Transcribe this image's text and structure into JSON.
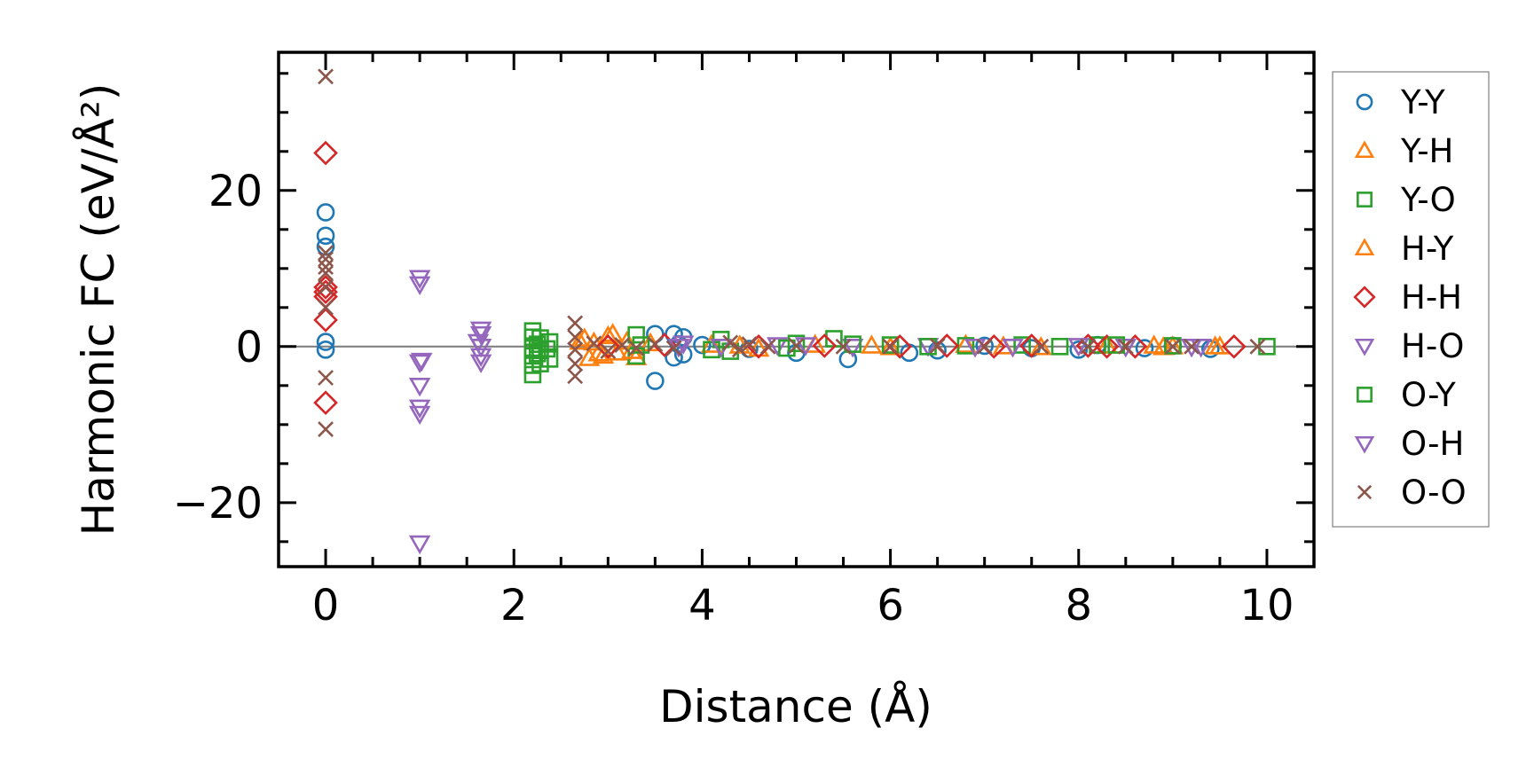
{
  "chart_data": {
    "type": "scatter",
    "title": "",
    "xlabel": "Distance (Å)",
    "ylabel": "Harmonic FC (eV/Å²)",
    "xlim": [
      -0.5,
      10.5
    ],
    "ylim": [
      -28.2,
      37.7
    ],
    "xticks": [
      0,
      2,
      4,
      6,
      8,
      10
    ],
    "xtick_labels": [
      "0",
      "2",
      "4",
      "6",
      "8",
      "10"
    ],
    "yticks": [
      -20,
      0,
      20
    ],
    "ytick_labels": [
      "−20",
      "0",
      "20"
    ],
    "x_minor_step": 0.5,
    "y_minor_step": 5,
    "grid": false,
    "zero_line": {
      "y": 0,
      "color": "#808080"
    },
    "legend_position": "outside-right",
    "series": [
      {
        "name": "Y-Y",
        "marker": "circle",
        "color": "#1f77b4",
        "points": [
          [
            0,
            17.2
          ],
          [
            0,
            14.2
          ],
          [
            0,
            12.8
          ],
          [
            0,
            0.6
          ],
          [
            0,
            -0.4
          ],
          [
            3.5,
            -4.4
          ],
          [
            3.5,
            1.6
          ],
          [
            3.7,
            1.6
          ],
          [
            3.7,
            -1.4
          ],
          [
            3.8,
            1.2
          ],
          [
            3.8,
            -1.0
          ],
          [
            3.75,
            0.3
          ],
          [
            4.0,
            0.2
          ],
          [
            4.5,
            -0.3
          ],
          [
            5.0,
            -0.8
          ],
          [
            5.55,
            -1.6
          ],
          [
            6.2,
            -0.8
          ],
          [
            6.5,
            -0.5
          ],
          [
            7.0,
            0.1
          ],
          [
            7.5,
            -0.2
          ],
          [
            8.0,
            -0.4
          ],
          [
            8.2,
            0.2
          ],
          [
            8.7,
            -0.2
          ],
          [
            9.0,
            0.1
          ],
          [
            9.4,
            -0.3
          ]
        ]
      },
      {
        "name": "Y-H",
        "marker": "triangle-up",
        "color": "#ff7f0e",
        "points": [
          [
            2.75,
            1.0
          ],
          [
            2.8,
            -1.5
          ],
          [
            2.85,
            0.5
          ],
          [
            2.95,
            -1.2
          ],
          [
            3.0,
            1.3
          ],
          [
            3.1,
            -0.8
          ],
          [
            3.2,
            0.6
          ],
          [
            3.3,
            -1.4
          ],
          [
            3.45,
            0.4
          ],
          [
            4.1,
            0.2
          ],
          [
            4.6,
            -0.3
          ],
          [
            5.2,
            0.2
          ],
          [
            6.0,
            -0.1
          ],
          [
            6.8,
            0.2
          ],
          [
            7.6,
            -0.1
          ],
          [
            8.3,
            0.1
          ],
          [
            8.9,
            -0.1
          ],
          [
            9.0,
            0.0
          ],
          [
            9.45,
            0.0
          ]
        ]
      },
      {
        "name": "Y-O",
        "marker": "square",
        "color": "#2ca02c",
        "points": [
          [
            2.2,
            2.0
          ],
          [
            2.2,
            1.2
          ],
          [
            2.2,
            -0.2
          ],
          [
            2.2,
            -1.2
          ],
          [
            2.2,
            -2.4
          ],
          [
            2.2,
            -3.6
          ],
          [
            2.28,
            1.1
          ],
          [
            2.28,
            -0.5
          ],
          [
            2.28,
            -2.2
          ],
          [
            2.38,
            0.6
          ],
          [
            2.38,
            -1.6
          ],
          [
            3.3,
            1.5
          ],
          [
            3.3,
            -1.2
          ],
          [
            4.2,
            0.9
          ],
          [
            4.3,
            -0.6
          ],
          [
            5.0,
            0.4
          ],
          [
            5.4,
            1.0
          ],
          [
            6.0,
            0.2
          ],
          [
            6.8,
            0.1
          ],
          [
            7.4,
            0.2
          ],
          [
            8.2,
            0.2
          ],
          [
            9.0,
            0.1
          ],
          [
            10.0,
            0.0
          ]
        ]
      },
      {
        "name": "H-Y",
        "marker": "triangle-up",
        "color": "#ff7f0e",
        "points": [
          [
            2.7,
            0.6
          ],
          [
            2.9,
            -0.9
          ],
          [
            3.05,
            1.6
          ],
          [
            3.25,
            -0.6
          ],
          [
            4.4,
            0.1
          ],
          [
            5.8,
            0.1
          ],
          [
            7.2,
            0.0
          ],
          [
            8.8,
            0.1
          ],
          [
            9.5,
            0.0
          ]
        ]
      },
      {
        "name": "H-H",
        "marker": "diamond",
        "color": "#d62728",
        "points": [
          [
            0,
            24.8
          ],
          [
            0,
            7.6
          ],
          [
            0,
            7.0
          ],
          [
            0,
            6.4
          ],
          [
            0,
            3.4
          ],
          [
            0,
            -7.2
          ],
          [
            3.0,
            0.0
          ],
          [
            3.6,
            0.2
          ],
          [
            4.6,
            0.0
          ],
          [
            5.3,
            0.1
          ],
          [
            6.1,
            0.0
          ],
          [
            6.6,
            0.1
          ],
          [
            7.1,
            0.0
          ],
          [
            7.5,
            0.1
          ],
          [
            8.1,
            0.1
          ],
          [
            8.3,
            0.0
          ],
          [
            8.6,
            0.0
          ],
          [
            9.65,
            0.0
          ]
        ]
      },
      {
        "name": "H-O",
        "marker": "triangle-down",
        "color": "#9467bd",
        "points": [
          [
            1.0,
            8.8
          ],
          [
            1.0,
            8.0
          ],
          [
            1.0,
            -2.0
          ],
          [
            1.0,
            -5.0
          ],
          [
            1.0,
            -7.8
          ],
          [
            1.0,
            -8.6
          ],
          [
            1.0,
            -25.2
          ],
          [
            1.65,
            2.2
          ],
          [
            1.65,
            1.6
          ],
          [
            1.65,
            0.0
          ],
          [
            1.65,
            -1.2
          ],
          [
            1.65,
            -2.0
          ],
          [
            3.75,
            0.0
          ],
          [
            4.8,
            0.2
          ],
          [
            5.6,
            0.0
          ],
          [
            6.4,
            0.1
          ],
          [
            7.3,
            0.0
          ],
          [
            8.5,
            0.0
          ],
          [
            9.2,
            0.0
          ]
        ]
      },
      {
        "name": "O-Y",
        "marker": "square",
        "color": "#2ca02c",
        "points": [
          [
            2.25,
            0.3
          ],
          [
            2.25,
            -0.9
          ],
          [
            2.35,
            -0.3
          ],
          [
            3.35,
            0.2
          ],
          [
            4.1,
            -0.4
          ],
          [
            4.9,
            -0.2
          ],
          [
            5.6,
            0.3
          ],
          [
            6.4,
            0.0
          ],
          [
            7.8,
            0.0
          ],
          [
            8.4,
            0.2
          ]
        ]
      },
      {
        "name": "O-H",
        "marker": "triangle-down",
        "color": "#9467bd",
        "points": [
          [
            1.02,
            -1.8
          ],
          [
            1.62,
            0.6
          ],
          [
            3.8,
            0.4
          ],
          [
            4.2,
            0.0
          ],
          [
            5.1,
            0.2
          ],
          [
            6.9,
            0.0
          ],
          [
            8.0,
            0.1
          ],
          [
            9.3,
            0.0
          ]
        ]
      },
      {
        "name": "O-O",
        "marker": "x",
        "color": "#8c564b",
        "points": [
          [
            0,
            34.6
          ],
          [
            0,
            12.0
          ],
          [
            0,
            11.2
          ],
          [
            0,
            10.2
          ],
          [
            0,
            9.4
          ],
          [
            0,
            7.6
          ],
          [
            0,
            5.0
          ],
          [
            0,
            -4.0
          ],
          [
            0,
            -10.6
          ],
          [
            2.65,
            3.0
          ],
          [
            2.65,
            1.2
          ],
          [
            2.65,
            -0.4
          ],
          [
            2.65,
            -2.2
          ],
          [
            2.65,
            -3.8
          ],
          [
            2.85,
            0.4
          ],
          [
            3.0,
            -0.6
          ],
          [
            3.15,
            0.2
          ],
          [
            3.3,
            -0.2
          ],
          [
            3.5,
            0.3
          ],
          [
            3.7,
            -0.2
          ],
          [
            4.3,
            0.5
          ],
          [
            4.4,
            -0.4
          ],
          [
            4.5,
            0.3
          ],
          [
            4.7,
            0.0
          ],
          [
            5.0,
            0.1
          ],
          [
            5.5,
            0.0
          ],
          [
            6.0,
            0.0
          ],
          [
            6.5,
            0.1
          ],
          [
            7.0,
            0.0
          ],
          [
            7.6,
            0.0
          ],
          [
            8.1,
            0.0
          ],
          [
            8.5,
            0.0
          ],
          [
            9.0,
            0.0
          ],
          [
            9.2,
            0.0
          ],
          [
            9.9,
            0.0
          ]
        ]
      }
    ]
  }
}
